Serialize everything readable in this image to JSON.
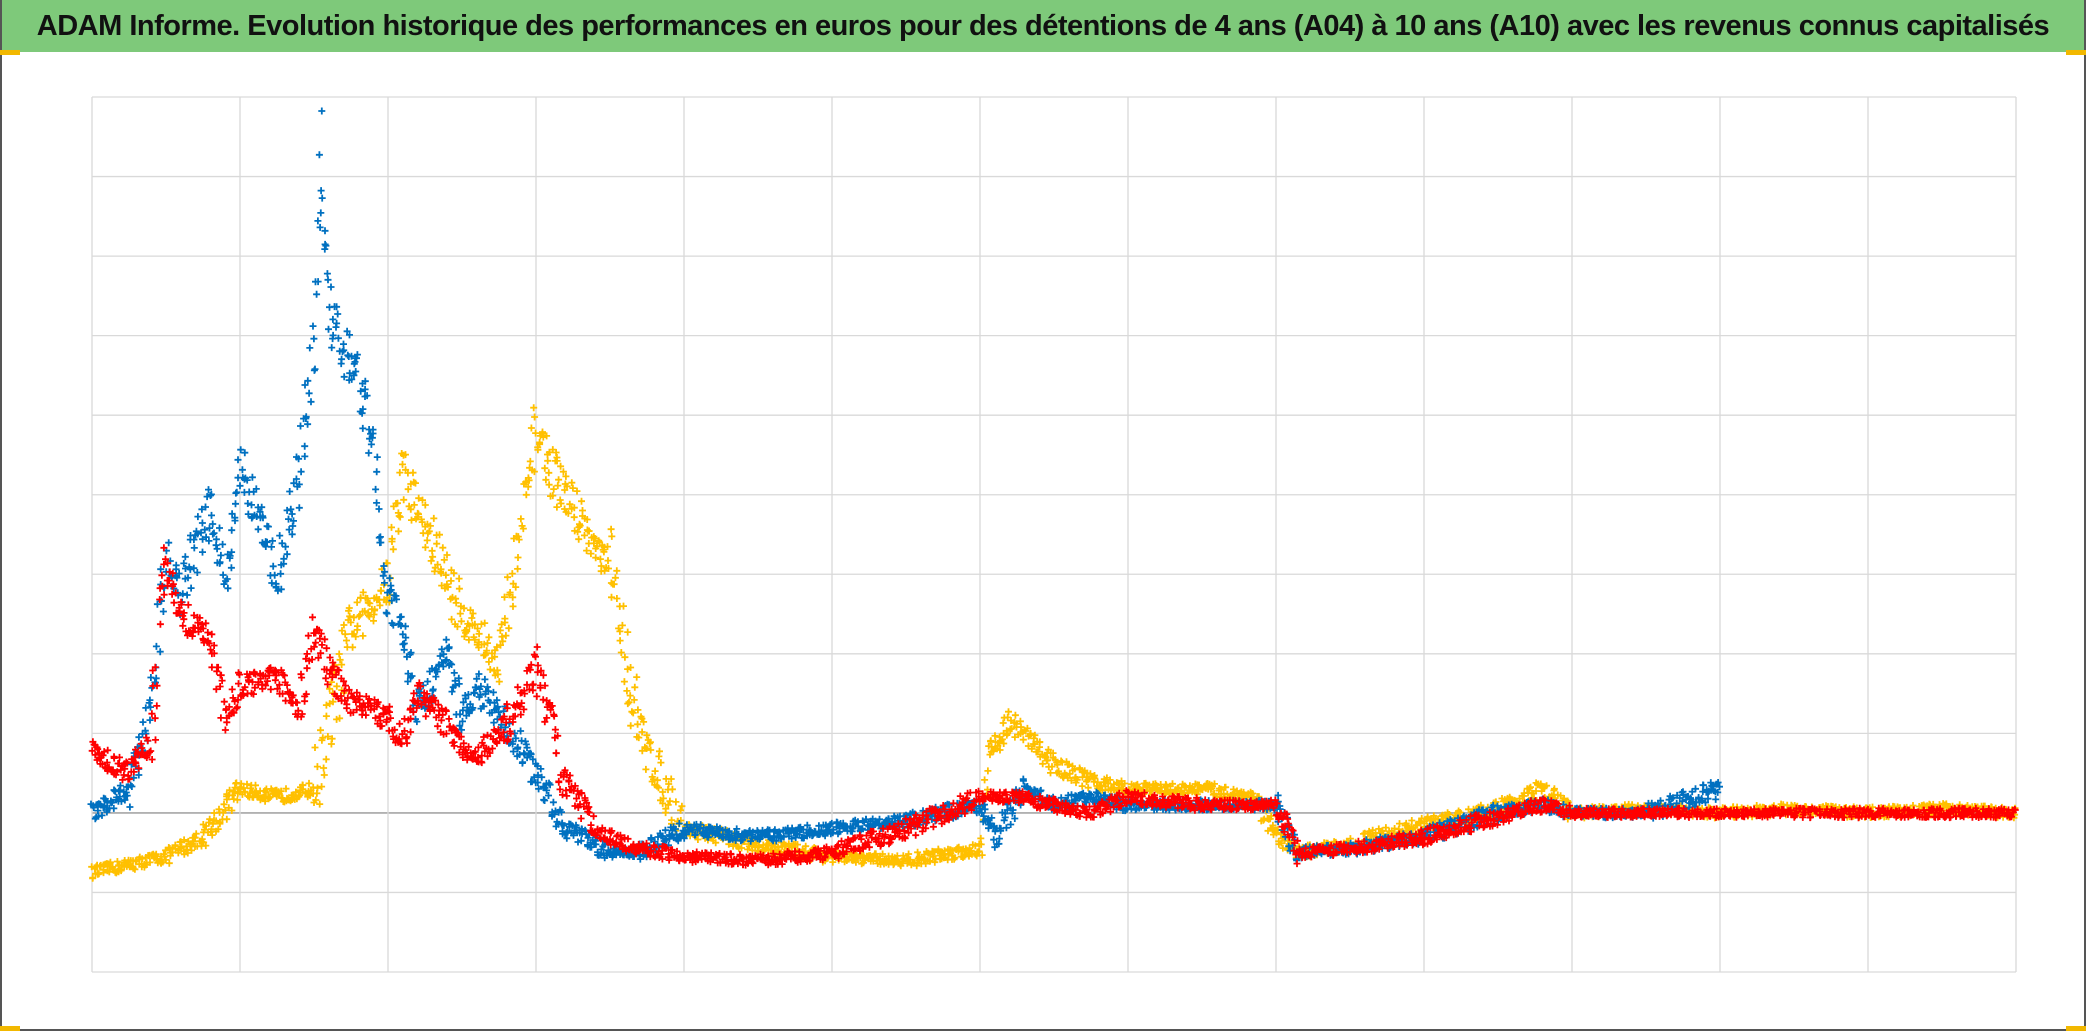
{
  "title": "ADAM Informe. Evolution historique des performances en euros pour des détentions de 4 ans (A04) à 10 ans (A10) avec les revenus connus capitalisés",
  "colors": {
    "title_background": "#7ec97a",
    "grid": "#d9d9d9",
    "zero_line": "#a6a6a6",
    "frame_corner": "#f2b800"
  },
  "chart_data": {
    "type": "scatter",
    "marker": "plus",
    "title": "ADAM Informe. Evolution historique des performances en euros pour des détentions de 4 ans (A04) à 10 ans (A10) avec les revenus connus capitalisés",
    "xlabel": "",
    "ylabel": "",
    "x_divisions": 13,
    "xlim": [
      0,
      13
    ],
    "ylim": [
      -2,
      9
    ],
    "y_gridlines": [
      -2,
      -1,
      0,
      1,
      2,
      3,
      4,
      5,
      6,
      7,
      8,
      9
    ],
    "grid": true,
    "legend": "none",
    "series": [
      {
        "color": "#ffc000",
        "x": [
          0,
          0.25,
          0.5,
          0.75,
          1.0,
          1.25,
          1.5,
          1.75,
          2.0,
          2.1,
          2.25,
          2.5,
          2.75,
          2.9,
          3.0,
          3.1,
          3.3,
          3.4,
          3.5,
          3.7,
          4.0,
          4.5,
          5.0,
          5.5,
          6.0,
          6.05,
          6.2,
          6.35,
          6.5,
          6.75,
          7.0,
          7.5,
          7.85,
          8.0,
          8.15,
          8.5,
          9.0,
          9.5,
          9.8,
          10.0,
          10.5,
          11.0,
          11.5,
          12.0,
          12.5,
          13.0
        ],
        "y": [
          -0.75,
          -0.65,
          -0.55,
          -0.3,
          0.3,
          0.2,
          0.3,
          2.3,
          2.9,
          4.3,
          3.6,
          2.5,
          1.9,
          3.5,
          4.8,
          4.3,
          3.7,
          3.3,
          3.1,
          1.0,
          -0.2,
          -0.4,
          -0.55,
          -0.6,
          -0.45,
          0.7,
          1.15,
          0.9,
          0.6,
          0.4,
          0.3,
          0.3,
          0.2,
          -0.3,
          -0.5,
          -0.4,
          -0.15,
          0.05,
          0.3,
          0.0,
          0.05,
          0.0,
          0.05,
          0.0,
          0.05,
          0.0
        ]
      },
      {
        "color": "#0070c0",
        "x": [
          0,
          0.25,
          0.4,
          0.5,
          0.6,
          0.8,
          0.9,
          1.0,
          1.1,
          1.25,
          1.4,
          1.5,
          1.55,
          1.6,
          1.7,
          1.8,
          1.9,
          2.0,
          2.1,
          2.2,
          2.4,
          2.5,
          2.6,
          2.8,
          3.0,
          3.2,
          3.5,
          3.7,
          4.0,
          4.5,
          5.0,
          5.5,
          6.0,
          6.1,
          6.3,
          6.5,
          6.75,
          7.0,
          7.5,
          8.0,
          8.15,
          8.5,
          9.0,
          9.5,
          9.8,
          10.0,
          10.5,
          11.0
        ],
        "y": [
          0,
          0.3,
          1.3,
          3.2,
          2.8,
          3.8,
          3.0,
          4.4,
          3.8,
          3.0,
          4.2,
          5.8,
          8.3,
          6.3,
          5.8,
          5.5,
          4.5,
          2.8,
          2.3,
          1.3,
          2.0,
          1.2,
          1.6,
          1.1,
          0.5,
          -0.2,
          -0.5,
          -0.5,
          -0.2,
          -0.3,
          -0.2,
          -0.1,
          0.1,
          -0.3,
          0.3,
          0.1,
          0.2,
          0.1,
          0.1,
          0.1,
          -0.5,
          -0.45,
          -0.3,
          0.0,
          0.1,
          0.0,
          0.0,
          0.3
        ]
      },
      {
        "color": "#ff0000",
        "x": [
          0,
          0.25,
          0.4,
          0.5,
          0.6,
          0.8,
          0.9,
          1.0,
          1.25,
          1.4,
          1.5,
          1.6,
          1.75,
          2.0,
          2.1,
          2.2,
          2.4,
          2.5,
          2.6,
          2.8,
          3.0,
          3.2,
          3.4,
          3.6,
          4.0,
          4.5,
          5.0,
          5.5,
          6.0,
          6.25,
          6.5,
          6.75,
          7.0,
          7.5,
          8.0,
          8.15,
          8.5,
          9.0,
          9.5,
          9.8,
          10.0,
          11.0,
          12.0,
          13.0
        ],
        "y": [
          0.8,
          0.5,
          0.9,
          3.3,
          2.5,
          2.2,
          1.2,
          1.6,
          1.7,
          1.3,
          2.3,
          1.8,
          1.4,
          1.2,
          0.9,
          1.5,
          1.1,
          0.8,
          0.7,
          1.1,
          1.8,
          0.4,
          -0.2,
          -0.4,
          -0.55,
          -0.6,
          -0.5,
          -0.2,
          0.2,
          0.2,
          0.1,
          0.0,
          0.2,
          0.1,
          0.1,
          -0.5,
          -0.45,
          -0.3,
          -0.05,
          0.1,
          0.0,
          0.0,
          0.0,
          0.0
        ]
      }
    ]
  }
}
